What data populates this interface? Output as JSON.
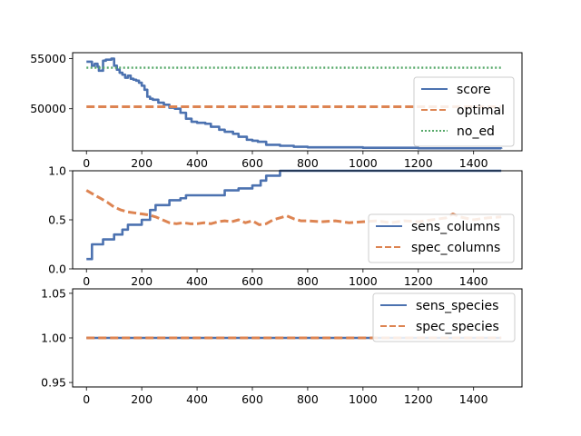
{
  "colors": {
    "blue": "#4c72b0",
    "orange": "#dd8452",
    "green": "#55a868"
  },
  "chart_data": [
    {
      "type": "line",
      "title": "",
      "xlabel": "",
      "ylabel": "",
      "xlim": [
        -50,
        1575
      ],
      "ylim": [
        45800,
        55600
      ],
      "xticks": [
        0,
        200,
        400,
        600,
        800,
        1000,
        1200,
        1400
      ],
      "xtick_labels": [
        "0",
        "200",
        "400",
        "600",
        "800",
        "1000",
        "1200",
        "1400"
      ],
      "yticks": [
        50000,
        55000
      ],
      "ytick_labels": [
        "50000",
        "55000"
      ],
      "legend_position": "right",
      "series": [
        {
          "name": "score",
          "color": "#4c72b0",
          "style": "solid",
          "step": true,
          "x": [
            0,
            20,
            30,
            40,
            45,
            60,
            70,
            90,
            100,
            110,
            120,
            130,
            140,
            150,
            160,
            170,
            180,
            190,
            200,
            210,
            220,
            230,
            240,
            260,
            280,
            300,
            320,
            340,
            360,
            380,
            400,
            430,
            450,
            480,
            500,
            530,
            550,
            580,
            600,
            620,
            650,
            700,
            750,
            800,
            1000,
            1200,
            1500
          ],
          "y": [
            54700,
            54300,
            54500,
            54200,
            53800,
            54800,
            54900,
            55000,
            54300,
            53900,
            53600,
            53400,
            53100,
            53300,
            53000,
            52900,
            52800,
            52600,
            52300,
            51900,
            51200,
            51000,
            50900,
            50600,
            50400,
            50100,
            50000,
            49600,
            49000,
            48700,
            48600,
            48500,
            48200,
            47900,
            47700,
            47500,
            47200,
            46900,
            46800,
            46700,
            46400,
            46300,
            46200,
            46150,
            46100,
            46050,
            46000
          ]
        },
        {
          "name": "optimal",
          "color": "#dd8452",
          "style": "dashed",
          "step": false,
          "x": [
            0,
            1500
          ],
          "y": [
            50200,
            50200
          ]
        },
        {
          "name": "no_ed",
          "color": "#55a868",
          "style": "dotted",
          "step": false,
          "x": [
            0,
            1500
          ],
          "y": [
            54100,
            54100
          ]
        }
      ]
    },
    {
      "type": "line",
      "title": "",
      "xlabel": "",
      "ylabel": "",
      "xlim": [
        -50,
        1575
      ],
      "ylim": [
        0.0,
        1.0
      ],
      "xticks": [
        0,
        200,
        400,
        600,
        800,
        1000,
        1200,
        1400
      ],
      "xtick_labels": [
        "0",
        "200",
        "400",
        "600",
        "800",
        "1000",
        "1200",
        "1400"
      ],
      "yticks": [
        0.0,
        0.5,
        1.0
      ],
      "ytick_labels": [
        "0.0",
        "0.5",
        "1.0"
      ],
      "legend_position": "right",
      "series": [
        {
          "name": "sens_columns",
          "color": "#4c72b0",
          "style": "solid",
          "step": true,
          "x": [
            0,
            20,
            30,
            60,
            100,
            130,
            150,
            170,
            200,
            230,
            250,
            300,
            340,
            360,
            500,
            550,
            600,
            630,
            650,
            700,
            730,
            1500
          ],
          "y": [
            0.1,
            0.25,
            0.25,
            0.3,
            0.35,
            0.4,
            0.45,
            0.45,
            0.5,
            0.6,
            0.65,
            0.7,
            0.72,
            0.75,
            0.8,
            0.82,
            0.85,
            0.9,
            0.95,
            1.0,
            1.0,
            1.0
          ]
        },
        {
          "name": "spec_columns",
          "color": "#dd8452",
          "style": "dashed",
          "step": false,
          "x": [
            0,
            25,
            50,
            75,
            100,
            125,
            150,
            175,
            200,
            225,
            250,
            275,
            300,
            325,
            350,
            375,
            400,
            425,
            450,
            475,
            500,
            525,
            550,
            575,
            600,
            625,
            650,
            675,
            700,
            725,
            750,
            775,
            800,
            850,
            900,
            950,
            1000,
            1050,
            1100,
            1150,
            1200,
            1250,
            1300,
            1325,
            1350,
            1400,
            1450,
            1500
          ],
          "y": [
            0.8,
            0.76,
            0.72,
            0.68,
            0.63,
            0.6,
            0.58,
            0.57,
            0.56,
            0.55,
            0.53,
            0.5,
            0.47,
            0.46,
            0.47,
            0.46,
            0.46,
            0.47,
            0.46,
            0.48,
            0.49,
            0.48,
            0.5,
            0.47,
            0.49,
            0.45,
            0.46,
            0.5,
            0.52,
            0.54,
            0.51,
            0.49,
            0.49,
            0.48,
            0.49,
            0.47,
            0.48,
            0.49,
            0.47,
            0.49,
            0.48,
            0.5,
            0.52,
            0.56,
            0.53,
            0.5,
            0.52,
            0.53
          ]
        }
      ]
    },
    {
      "type": "line",
      "title": "",
      "xlabel": "",
      "ylabel": "",
      "xlim": [
        -50,
        1575
      ],
      "ylim": [
        0.945,
        1.055
      ],
      "xticks": [
        0,
        200,
        400,
        600,
        800,
        1000,
        1200,
        1400
      ],
      "xtick_labels": [
        "0",
        "200",
        "400",
        "600",
        "800",
        "1000",
        "1200",
        "1400"
      ],
      "yticks": [
        0.95,
        1.0,
        1.05
      ],
      "ytick_labels": [
        "0.95",
        "1.00",
        "1.05"
      ],
      "legend_position": "top-right",
      "series": [
        {
          "name": "sens_species",
          "color": "#4c72b0",
          "style": "solid",
          "step": false,
          "x": [
            0,
            1500
          ],
          "y": [
            1.0,
            1.0
          ]
        },
        {
          "name": "spec_species",
          "color": "#dd8452",
          "style": "dashed",
          "step": false,
          "x": [
            0,
            1500
          ],
          "y": [
            1.0,
            1.0
          ]
        }
      ]
    }
  ]
}
